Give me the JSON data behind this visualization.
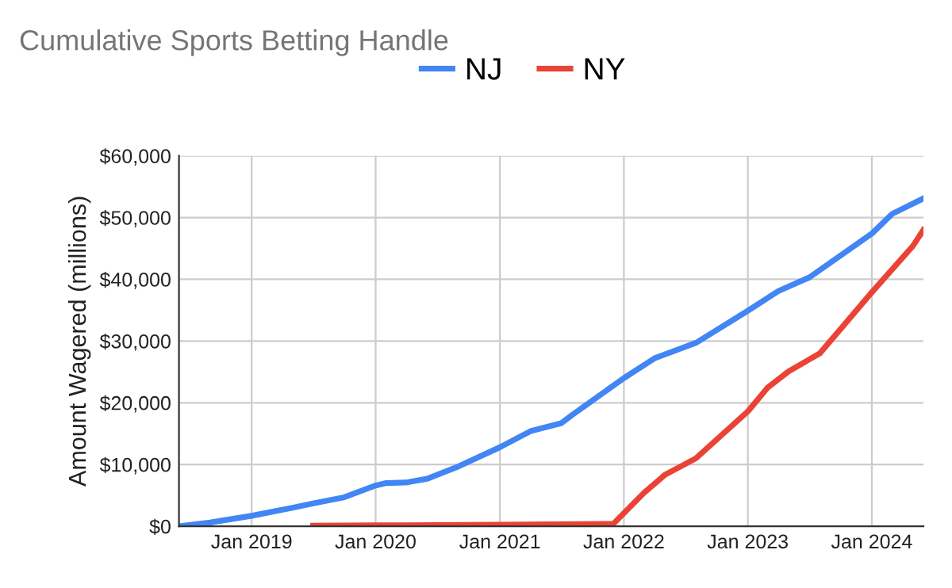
{
  "chart_data": {
    "type": "line",
    "title": "Cumulative Sports Betting Handle",
    "ylabel": "Amount Wagered (millions)",
    "xlim": [
      "2018-06",
      "2024-06"
    ],
    "xticks": [
      {
        "value": "2019-01",
        "label": "Jan 2019"
      },
      {
        "value": "2020-01",
        "label": "Jan 2020"
      },
      {
        "value": "2021-01",
        "label": "Jan 2021"
      },
      {
        "value": "2022-01",
        "label": "Jan 2022"
      },
      {
        "value": "2023-01",
        "label": "Jan 2023"
      },
      {
        "value": "2024-01",
        "label": "Jan 2024"
      }
    ],
    "ylim": [
      0,
      60000
    ],
    "yticks": [
      {
        "value": 0,
        "label": "$0"
      },
      {
        "value": 10000,
        "label": "$10,000"
      },
      {
        "value": 20000,
        "label": "$20,000"
      },
      {
        "value": 30000,
        "label": "$30,000"
      },
      {
        "value": 40000,
        "label": "$40,000"
      },
      {
        "value": 50000,
        "label": "$50,000"
      },
      {
        "value": 60000,
        "label": "$60,000"
      }
    ],
    "grid": true,
    "legend": "top",
    "marker": "none",
    "line_style": "solid",
    "series": [
      {
        "name": "NJ",
        "color": "#4285f4",
        "x": [
          "2018-06",
          "2018-09",
          "2019-01",
          "2019-05",
          "2019-07",
          "2019-10",
          "2020-01",
          "2020-02",
          "2020-04",
          "2020-06",
          "2020-09",
          "2021-01",
          "2021-04",
          "2021-07",
          "2021-08",
          "2022-01",
          "2022-04",
          "2022-08",
          "2023-01",
          "2023-04",
          "2023-07",
          "2024-01",
          "2024-03",
          "2024-06"
        ],
        "values": [
          0,
          600,
          1700,
          3000,
          3700,
          4700,
          6600,
          7000,
          7100,
          7700,
          9700,
          12800,
          15400,
          16700,
          18000,
          24000,
          27200,
          29700,
          34900,
          38100,
          40300,
          47400,
          50600,
          53100
        ]
      },
      {
        "name": "NY",
        "color": "#ea4335",
        "x": [
          "2019-07",
          "2020-01",
          "2021-01",
          "2021-12",
          "2022-03",
          "2022-05",
          "2022-08",
          "2023-01",
          "2023-03",
          "2023-05",
          "2023-08",
          "2024-01",
          "2024-05",
          "2024-06"
        ],
        "values": [
          100,
          150,
          250,
          400,
          5400,
          8300,
          11000,
          18600,
          22500,
          25100,
          28000,
          37900,
          45400,
          48000
        ]
      }
    ]
  }
}
